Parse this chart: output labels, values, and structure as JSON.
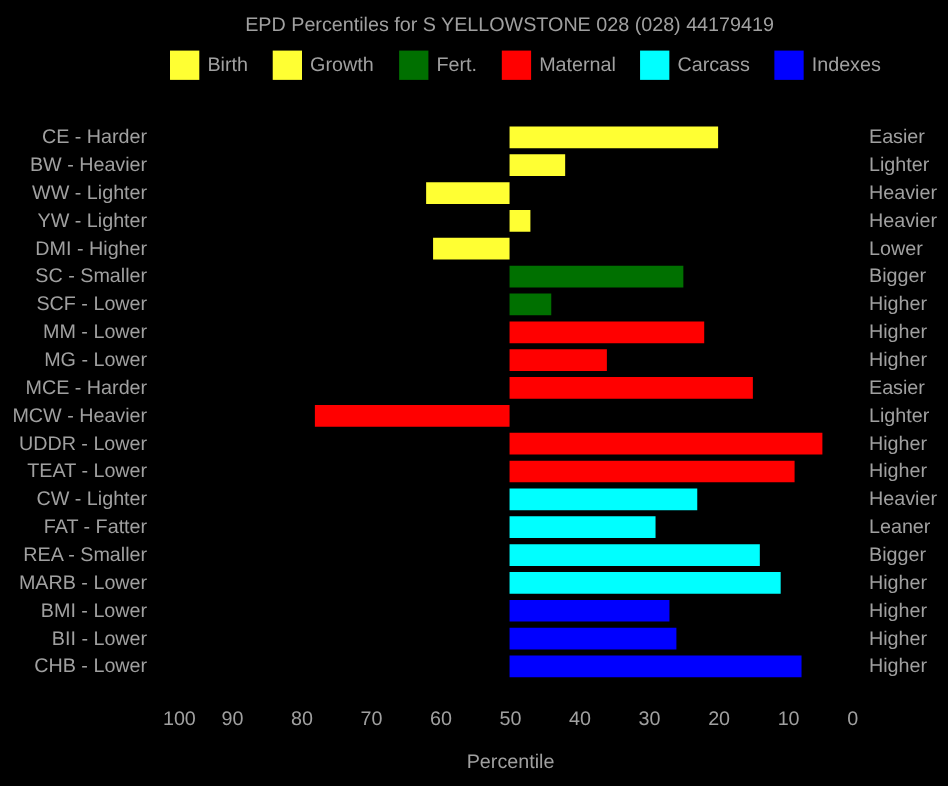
{
  "chart_data": {
    "type": "bar",
    "orientation": "horizontal",
    "title": "EPD Percentiles for S YELLOWSTONE 028 (028) 44179419",
    "xlabel": "Percentile",
    "categories": [
      "CE - Harder",
      "BW - Heavier",
      "WW - Lighter",
      "YW - Lighter",
      "DMI - Higher",
      "SC - Smaller",
      "SCF - Lower",
      "MM - Lower",
      "MG - Lower",
      "MCE - Harder",
      "MCW - Heavier",
      "UDDR - Lower",
      "TEAT - Lower",
      "CW - Lighter",
      "FAT - Fatter",
      "REA - Smaller",
      "MARB - Lower",
      "BMI - Lower",
      "BII - Lower",
      "CHB - Lower"
    ],
    "y2_categories": [
      "Easier",
      "Lighter",
      "Heavier",
      "Heavier",
      "Lower",
      "Bigger",
      "Higher",
      "Higher",
      "Higher",
      "Easier",
      "Lighter",
      "Higher",
      "Higher",
      "Heavier",
      "Leaner",
      "Bigger",
      "Higher",
      "Higher",
      "Higher",
      "Higher"
    ],
    "series": [
      {
        "name": "Birth",
        "color": "#ffff33",
        "base": [
          50,
          50,
          null,
          null,
          null,
          null,
          null,
          null,
          null,
          null,
          null,
          null,
          null,
          null,
          null,
          null,
          null,
          null,
          null,
          null
        ],
        "values": [
          -30,
          -8,
          null,
          null,
          null,
          null,
          null,
          null,
          null,
          null,
          null,
          null,
          null,
          null,
          null,
          null,
          null,
          null,
          null,
          null
        ]
      },
      {
        "name": "Growth",
        "color": "#ffff33",
        "base": [
          null,
          null,
          50,
          50,
          50,
          null,
          null,
          null,
          null,
          null,
          null,
          null,
          null,
          null,
          null,
          null,
          null,
          null,
          null,
          null
        ],
        "values": [
          null,
          null,
          12,
          -3,
          11,
          null,
          null,
          null,
          null,
          null,
          null,
          null,
          null,
          null,
          null,
          null,
          null,
          null,
          null,
          null
        ]
      },
      {
        "name": "Fert.",
        "color": "#007000",
        "base": [
          null,
          null,
          null,
          null,
          null,
          50,
          50,
          null,
          null,
          null,
          null,
          null,
          null,
          null,
          null,
          null,
          null,
          null,
          null,
          null
        ],
        "values": [
          null,
          null,
          null,
          null,
          null,
          -25,
          -6,
          null,
          null,
          null,
          null,
          null,
          null,
          null,
          null,
          null,
          null,
          null,
          null,
          null
        ]
      },
      {
        "name": "Maternal",
        "color": "#ff0000",
        "base": [
          null,
          null,
          null,
          null,
          null,
          null,
          null,
          50,
          50,
          50,
          50,
          50,
          50,
          null,
          null,
          null,
          null,
          null,
          null,
          null
        ],
        "values": [
          null,
          null,
          null,
          null,
          null,
          null,
          null,
          -28,
          -14,
          -35,
          28,
          -45,
          -41,
          null,
          null,
          null,
          null,
          null,
          null,
          null
        ]
      },
      {
        "name": "Carcass",
        "color": "#00ffff",
        "base": [
          null,
          null,
          null,
          null,
          null,
          null,
          null,
          null,
          null,
          null,
          null,
          null,
          null,
          50,
          50,
          50,
          50,
          null,
          null,
          null
        ],
        "values": [
          null,
          null,
          null,
          null,
          null,
          null,
          null,
          null,
          null,
          null,
          null,
          null,
          null,
          -27,
          -21,
          -36,
          -39,
          null,
          null,
          null
        ]
      },
      {
        "name": "Indexes",
        "color": "#0000ff",
        "base": [
          null,
          null,
          null,
          null,
          null,
          null,
          null,
          null,
          null,
          null,
          null,
          null,
          null,
          null,
          null,
          null,
          null,
          50,
          50,
          50
        ],
        "values": [
          null,
          null,
          null,
          null,
          null,
          null,
          null,
          null,
          null,
          null,
          null,
          null,
          null,
          null,
          null,
          null,
          null,
          -23,
          -24,
          -42
        ]
      }
    ],
    "xlim": [
      100,
      0
    ],
    "xticks": [
      100,
      90,
      80,
      70,
      60,
      50,
      40,
      30,
      20,
      10,
      0
    ],
    "grid": false,
    "legend": "top"
  }
}
